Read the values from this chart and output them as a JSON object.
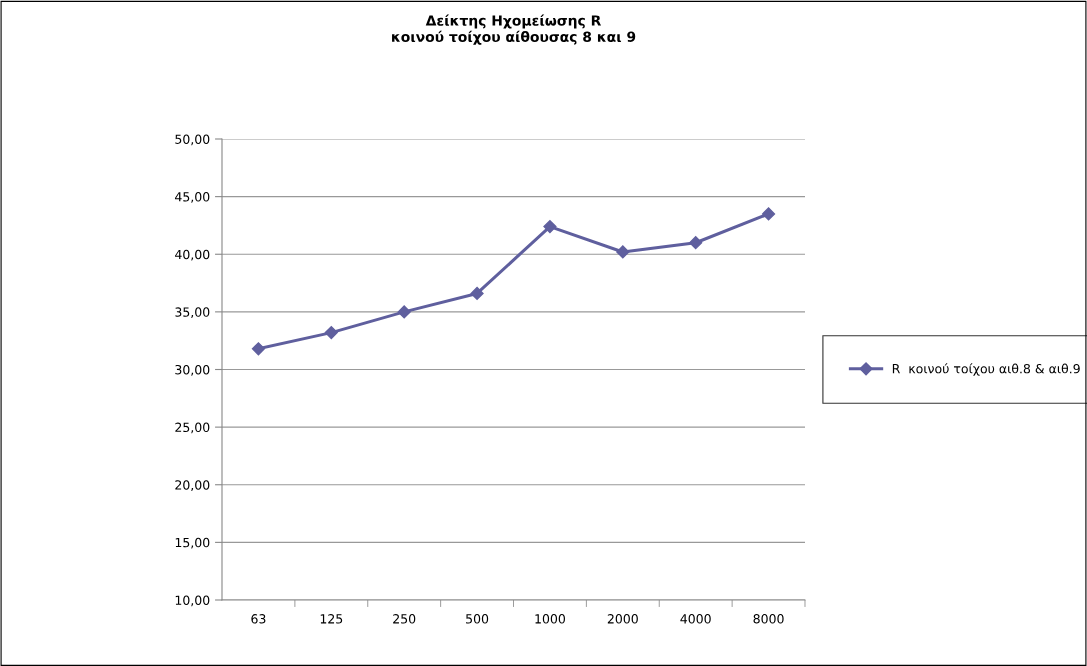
{
  "chart_data": {
    "type": "line",
    "title": "Δείκτης Ηχομείωσης R\nκοινού τοίχου αίθουσας 8 και 9",
    "categories": [
      "63",
      "125",
      "250",
      "500",
      "1000",
      "2000",
      "4000",
      "8000"
    ],
    "series": [
      {
        "name": "R  κοινού τοίχου αιθ.8 & αιθ.9",
        "color": "#5f5f9e",
        "values": [
          31.8,
          33.2,
          35.0,
          36.6,
          42.4,
          40.2,
          41.0,
          43.5
        ]
      }
    ],
    "ylim": [
      10,
      50
    ],
    "yticks": [
      {
        "value": 10,
        "label": "10,00"
      },
      {
        "value": 15,
        "label": "15,00"
      },
      {
        "value": 20,
        "label": "20,00"
      },
      {
        "value": 25,
        "label": "25,00"
      },
      {
        "value": 30,
        "label": "30,00"
      },
      {
        "value": 35,
        "label": "35,00"
      },
      {
        "value": 40,
        "label": "40,00"
      },
      {
        "value": 45,
        "label": "45,00"
      },
      {
        "value": 50,
        "label": "50,00"
      }
    ],
    "grid": "y",
    "legend": "right",
    "marker": "diamond",
    "line_style": "solid"
  }
}
